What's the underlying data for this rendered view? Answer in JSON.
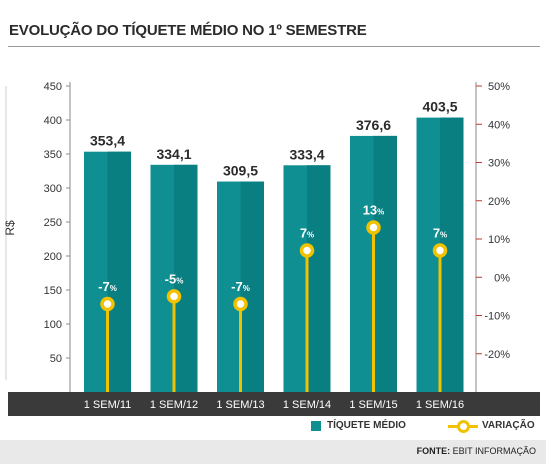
{
  "title": "EVOLUÇÃO DO TÍQUETE MÉDIO NO 1º SEMESTRE",
  "source_label": "FONTE:",
  "source_value": "EBIT INFORMAÇÃO",
  "legend": {
    "bars": "TÍQUETE MÉDIO",
    "line": "VARIAÇÃO"
  },
  "colors": {
    "bar": "#0f8f92",
    "bar_dark": "#0a7f82",
    "variation": "#f2c200",
    "axis_bar": "#3a3a3a",
    "right_tick": "#c0392b"
  },
  "chart_data": {
    "type": "bar",
    "categories": [
      "1 SEM/11",
      "1 SEM/12",
      "1 SEM/13",
      "1 SEM/14",
      "1 SEM/15",
      "1 SEM/16"
    ],
    "ylabel": "R$",
    "ylim": [
      0,
      450
    ],
    "yticks": [
      50,
      100,
      150,
      200,
      250,
      300,
      350,
      400,
      450
    ],
    "y2lim": [
      -30,
      50
    ],
    "y2ticks": [
      "-20%",
      "-10%",
      "0%",
      "10%",
      "20%",
      "30%",
      "40%",
      "50%"
    ],
    "y2tick_values": [
      -20,
      -10,
      0,
      10,
      20,
      30,
      40,
      50
    ],
    "series": [
      {
        "name": "TÍQUETE MÉDIO",
        "values": [
          353.4,
          334.1,
          309.5,
          333.4,
          376.6,
          403.5
        ],
        "labels": [
          "353,4",
          "334,1",
          "309,5",
          "333,4",
          "376,6",
          "403,5"
        ]
      },
      {
        "name": "VARIAÇÃO",
        "values": [
          -7,
          -5,
          -7,
          7,
          13,
          7
        ],
        "labels": [
          "-7",
          "-5",
          "-7",
          "7",
          "13",
          "7"
        ],
        "unit": "%"
      }
    ],
    "legend_position": "bottom-right"
  }
}
